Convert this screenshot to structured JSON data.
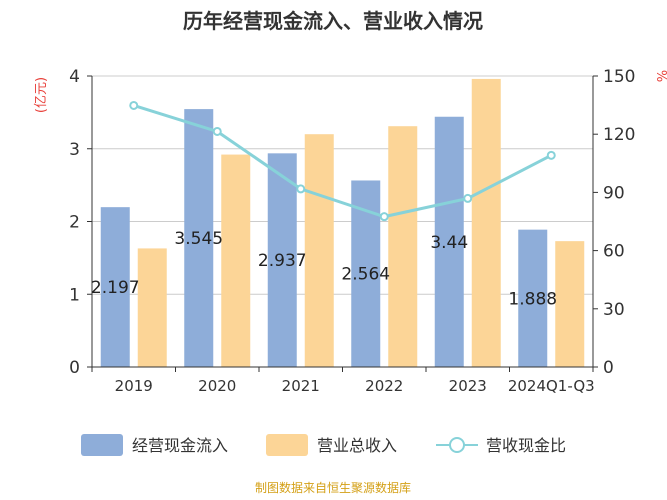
{
  "chart_data": {
    "type": "bar+line",
    "title": "历年经营现金流入、营业收入情况",
    "categories": [
      "2019",
      "2020",
      "2021",
      "2022",
      "2023",
      "2024Q1-Q3"
    ],
    "left_axis": {
      "unit": "(亿元)",
      "ylim": [
        0,
        4
      ],
      "ticks": [
        "0",
        "1",
        "2",
        "3",
        "4"
      ]
    },
    "right_axis": {
      "unit": "%",
      "ylim": [
        0,
        150
      ],
      "ticks": [
        "0",
        "30",
        "60",
        "90",
        "120",
        "150"
      ]
    },
    "series": [
      {
        "name": "经营现金流入",
        "type": "bar",
        "axis": "left",
        "color": "#8eadd9",
        "values": [
          2.197,
          3.545,
          2.937,
          2.564,
          3.44,
          1.888
        ],
        "labels": [
          "2.197",
          "3.545",
          "2.937",
          "2.564",
          "3.44",
          "1.888"
        ]
      },
      {
        "name": "营业总收入",
        "type": "bar",
        "axis": "left",
        "color": "#fcd597",
        "values": [
          1.63,
          2.92,
          3.2,
          3.31,
          3.96,
          1.73
        ]
      },
      {
        "name": "营收现金比",
        "type": "line",
        "axis": "right",
        "color": "#87d2d9",
        "values": [
          134.8,
          121.4,
          91.8,
          77.5,
          86.9,
          109.1
        ]
      }
    ],
    "legend_position": "bottom",
    "grid": true
  },
  "source": "制图数据来自恒生聚源数据库"
}
